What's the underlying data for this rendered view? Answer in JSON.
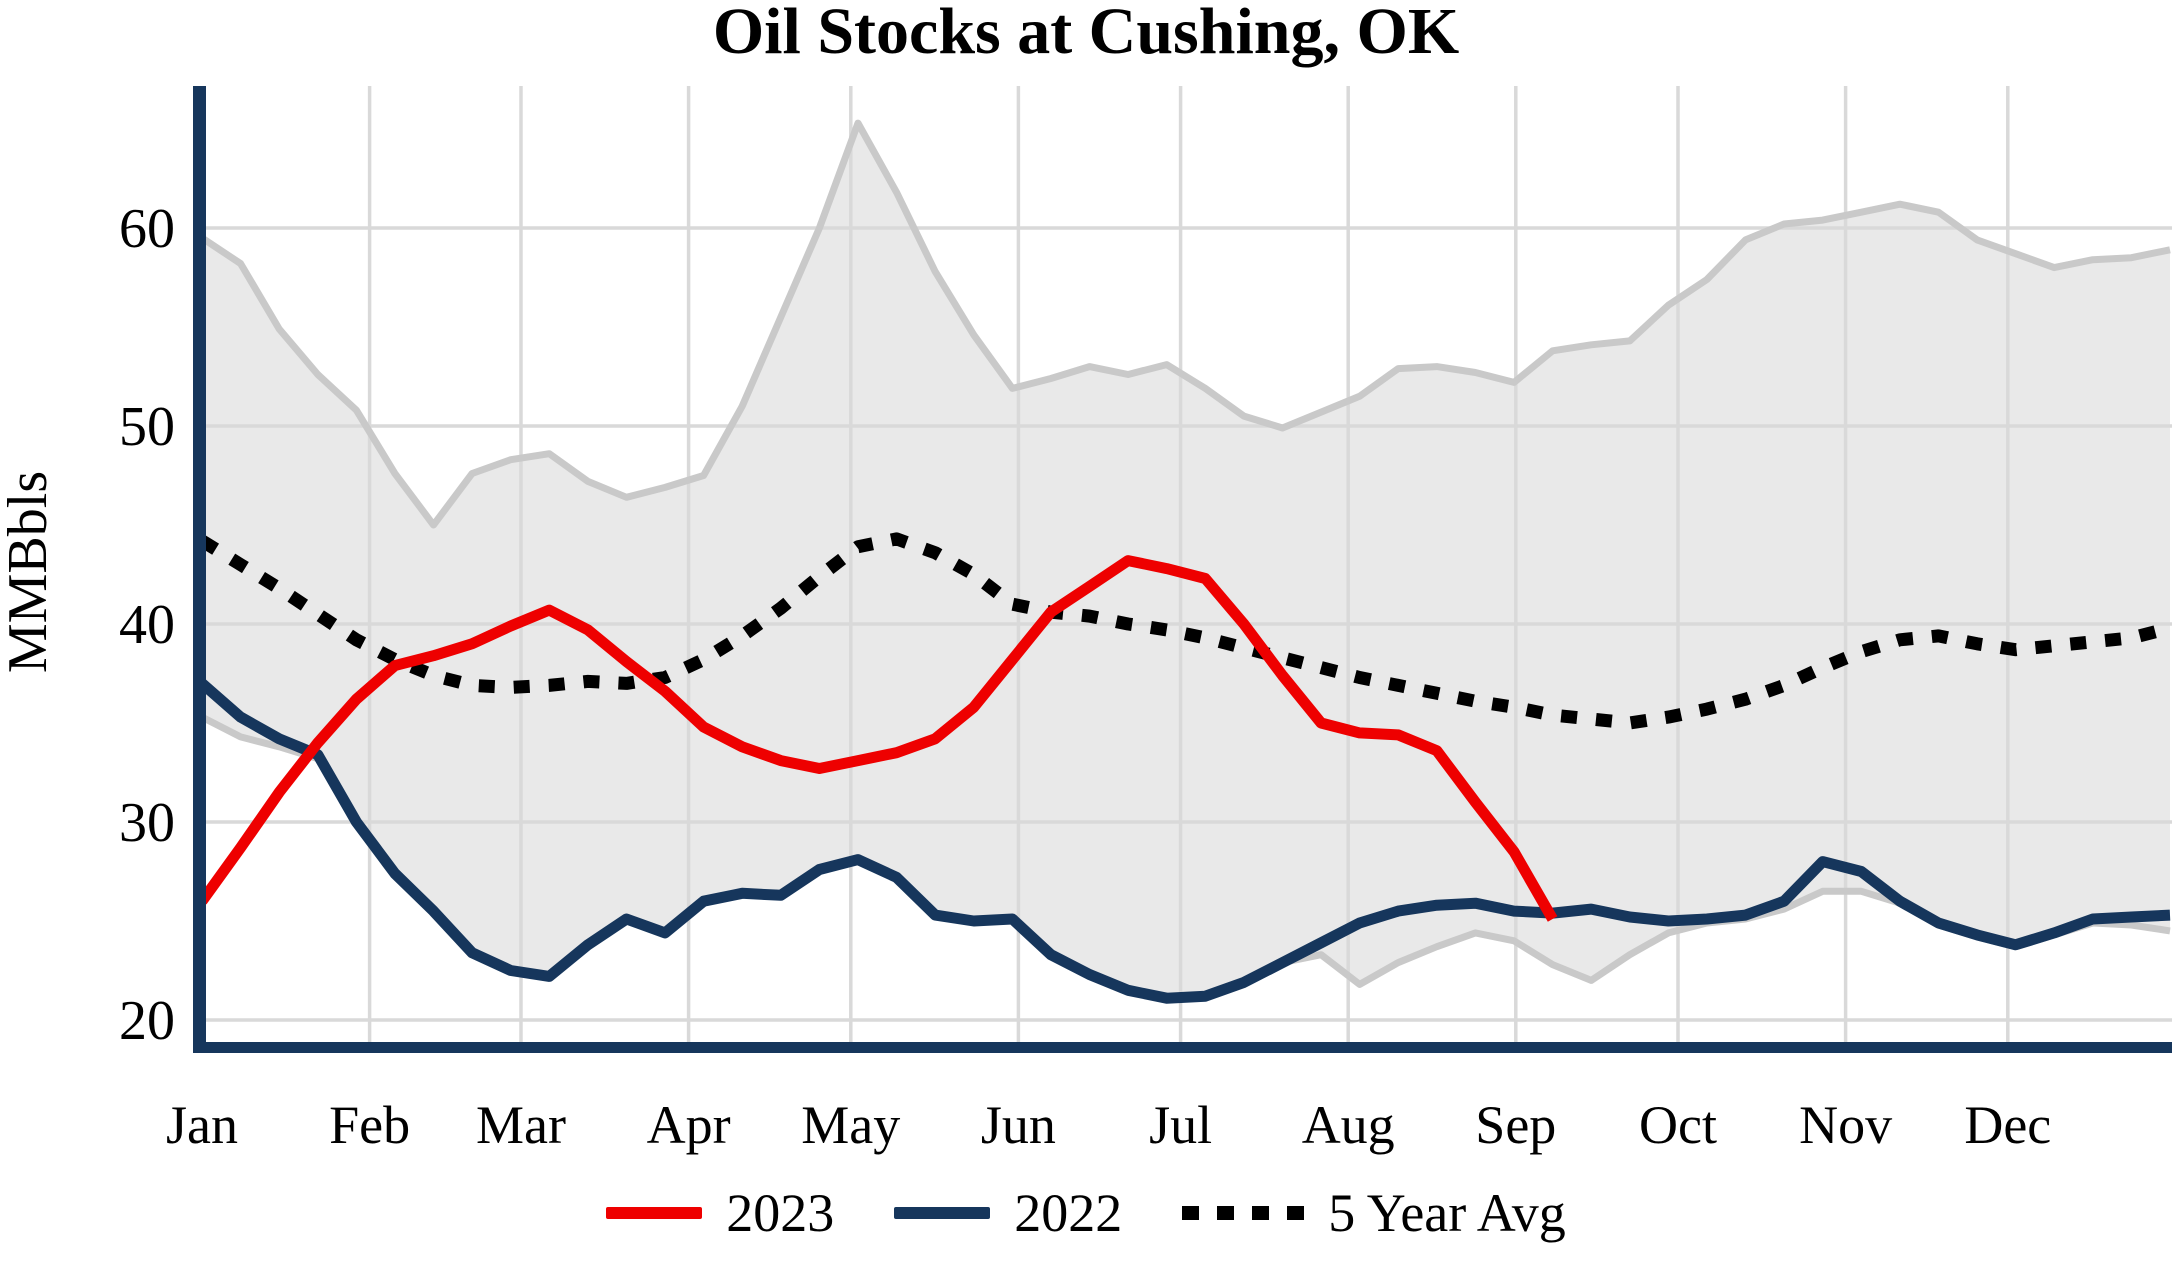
{
  "title": "Oil Stocks at Cushing, OK",
  "y_axis": {
    "label": "MMBbls",
    "ticks": [
      20,
      30,
      40,
      50,
      60
    ]
  },
  "x_axis": {
    "months": [
      "Jan",
      "Feb",
      "Mar",
      "Apr",
      "May",
      "Jun",
      "Jul",
      "Aug",
      "Sep",
      "Oct",
      "Nov",
      "Dec"
    ]
  },
  "legend": {
    "items": [
      {
        "label": "2023",
        "color": "#EE0000",
        "style": "solid"
      },
      {
        "label": "2022",
        "color": "#16365C",
        "style": "solid"
      },
      {
        "label": "5 Year Avg",
        "color": "#000000",
        "style": "dotted"
      }
    ]
  },
  "colors": {
    "red_2023": "#EE0000",
    "navy_2022": "#16365C",
    "avg_black": "#000000",
    "band_fill": "#E9E9E9",
    "band_edge": "#C9C9C9",
    "gridline": "#D9D9D9",
    "axis": "#16365C",
    "text": "#000000"
  },
  "chart_data": {
    "type": "line",
    "title": "Oil Stocks at Cushing, OK",
    "ylabel": "MMBbls",
    "x": "weekly points, Jan 1 through year end",
    "ylim": [
      18.6,
      67.5
    ],
    "yticks": [
      20,
      30,
      40,
      50,
      60
    ],
    "grid": true,
    "legend_position": "bottom",
    "series": [
      {
        "name": "5-year range band",
        "role": "band",
        "fill": "#E9E9E9",
        "edge": "#C9C9C9",
        "top": [
          59.5,
          58.2,
          54.9,
          52.6,
          50.8,
          47.6,
          45.0,
          47.6,
          48.3,
          48.6,
          47.2,
          46.4,
          46.9,
          47.5,
          51.0,
          55.5,
          60.0,
          65.3,
          61.8,
          57.8,
          54.6,
          51.9,
          52.4,
          53.0,
          52.6,
          53.1,
          51.9,
          50.5,
          49.9,
          50.7,
          51.5,
          52.9,
          53.0,
          52.7,
          52.2,
          53.8,
          54.1,
          54.3,
          56.1,
          57.4,
          59.4,
          60.2,
          60.4,
          60.8,
          61.2,
          60.8,
          59.4,
          58.7,
          58.0,
          58.4,
          58.5,
          58.9
        ],
        "bottom": [
          35.3,
          34.3,
          33.8,
          33.2,
          30.0,
          27.4,
          25.5,
          23.4,
          22.5,
          22.2,
          23.8,
          25.1,
          24.4,
          26.0,
          26.4,
          26.3,
          27.6,
          28.1,
          27.2,
          25.3,
          25.0,
          25.1,
          23.3,
          22.3,
          21.5,
          21.1,
          21.2,
          21.9,
          22.9,
          23.3,
          21.8,
          22.9,
          23.7,
          24.4,
          24.0,
          22.8,
          22.0,
          23.3,
          24.4,
          24.9,
          25.1,
          25.6,
          26.5,
          26.5,
          25.9,
          24.8,
          24.2,
          23.7,
          24.3,
          24.9,
          24.8,
          24.5
        ]
      },
      {
        "name": "5 Year Avg",
        "role": "line",
        "color": "#000000",
        "dashed": true,
        "values": [
          44.2,
          43.0,
          41.8,
          40.5,
          39.2,
          38.2,
          37.4,
          36.9,
          36.8,
          36.9,
          37.1,
          37.0,
          37.3,
          38.2,
          39.4,
          40.8,
          42.4,
          43.9,
          44.3,
          43.6,
          42.5,
          41.0,
          40.6,
          40.4,
          40.0,
          39.7,
          39.3,
          38.8,
          38.3,
          37.8,
          37.3,
          36.9,
          36.5,
          36.1,
          35.8,
          35.4,
          35.2,
          35.0,
          35.3,
          35.7,
          36.2,
          36.9,
          37.8,
          38.6,
          39.2,
          39.4,
          39.0,
          38.7,
          38.9,
          39.1,
          39.3,
          39.8
        ]
      },
      {
        "name": "2022",
        "role": "line",
        "color": "#16365C",
        "dashed": false,
        "values": [
          37.0,
          35.3,
          34.2,
          33.4,
          30.0,
          27.4,
          25.5,
          23.4,
          22.5,
          22.2,
          23.8,
          25.1,
          24.4,
          26.0,
          26.4,
          26.3,
          27.6,
          28.1,
          27.2,
          25.3,
          25.0,
          25.1,
          23.3,
          22.3,
          21.5,
          21.1,
          21.2,
          21.9,
          22.9,
          23.9,
          24.9,
          25.5,
          25.8,
          25.9,
          25.5,
          25.4,
          25.6,
          25.2,
          25.0,
          25.1,
          25.3,
          26.0,
          28.0,
          27.5,
          26.0,
          24.9,
          24.3,
          23.8,
          24.4,
          25.1,
          25.2,
          25.3
        ]
      },
      {
        "name": "2023",
        "role": "line",
        "color": "#EE0000",
        "dashed": false,
        "values": [
          26.0,
          28.7,
          31.5,
          34.0,
          36.2,
          37.9,
          38.4,
          39.0,
          39.9,
          40.7,
          39.7,
          38.1,
          36.6,
          34.8,
          33.8,
          33.1,
          32.7,
          33.1,
          33.5,
          34.2,
          35.8,
          38.2,
          40.6,
          41.9,
          43.2,
          42.8,
          42.3,
          40.0,
          37.4,
          35.0,
          34.5,
          34.4,
          33.6,
          31.0,
          28.5,
          25.1
        ]
      }
    ]
  }
}
